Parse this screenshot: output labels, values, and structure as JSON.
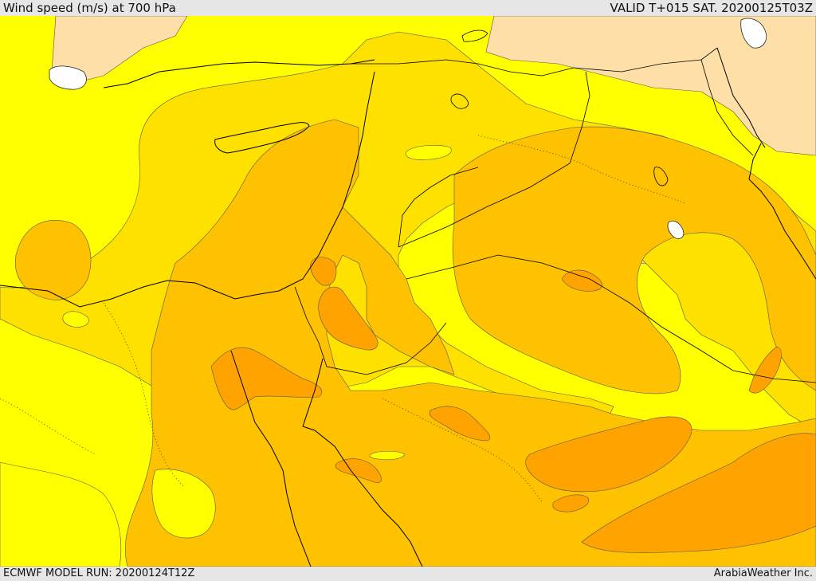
{
  "header": {
    "title": "Wind speed (m/s) at 700 hPa",
    "valid": "VALID T+015 SAT. 20200125T03Z"
  },
  "footer": {
    "model_run": "ECMWF MODEL RUN: 20200124T12Z",
    "credit": "ArabiaWeather Inc."
  },
  "colors": {
    "land_low": "#ffff00",
    "level_2": "#ffe100",
    "level_3": "#ffc200",
    "level_4": "#ffa300",
    "very_low": "#ffdfa8",
    "masked": "#ffffff",
    "frame": "#e6e6e6"
  }
}
